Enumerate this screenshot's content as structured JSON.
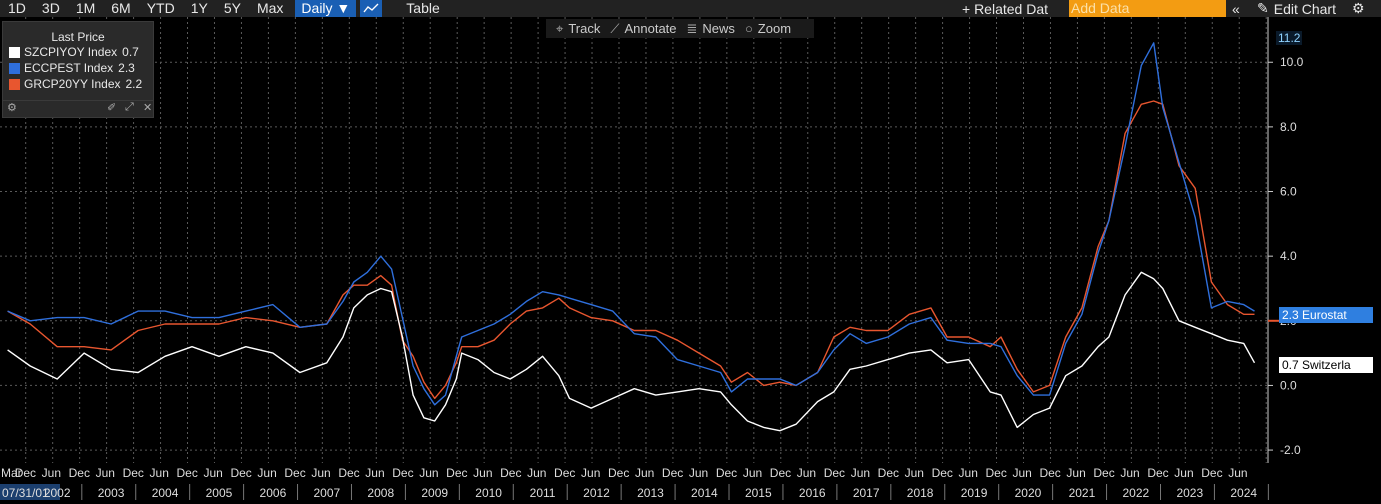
{
  "toolbar": {
    "ranges": [
      "1D",
      "3D",
      "1M",
      "6M",
      "YTD",
      "1Y",
      "5Y",
      "Max"
    ],
    "frequency": "Daily ▼",
    "table_label": "Table",
    "related_label": "+ Related Dat",
    "add_data_placeholder": "Add Data",
    "collapse_glyph": "«",
    "edit_chart_label": "Edit Chart"
  },
  "legend": {
    "title": "Last Price",
    "items": [
      {
        "label": "SZCPIYOY Index",
        "value": "0.7",
        "color": "#ffffff"
      },
      {
        "label": "ECCPEST Index",
        "value": "2.3",
        "color": "#2f6fdc"
      },
      {
        "label": "GRCP20YY Index",
        "value": "2.2",
        "color": "#e8562f"
      }
    ]
  },
  "chart_tools": [
    "Track",
    "Annotate",
    "News",
    "Zoom"
  ],
  "tags": {
    "top_value": "11.2",
    "eurostat": "2.3 Eurostat",
    "switzerland": "0.7 Switzerla"
  },
  "x_axis": {
    "start_label": "07/31/01",
    "months": [
      "Mar",
      "Dec",
      "Jun",
      "Dec",
      "Jun",
      "Dec",
      "Jun",
      "Dec",
      "Jun",
      "Dec",
      "Jun",
      "Dec",
      "Jun",
      "Dec",
      "Jun",
      "Dec",
      "Jun",
      "Dec",
      "Jun",
      "Dec",
      "Jun",
      "Dec",
      "Jun",
      "Dec",
      "Jun",
      "Dec",
      "Jun",
      "Dec",
      "Jun",
      "Dec",
      "Jun",
      "Dec",
      "Jun",
      "Dec",
      "Jun",
      "Dec",
      "Jun",
      "Dec",
      "Jun",
      "Dec",
      "Jun",
      "Dec",
      "Jun",
      "Dec",
      "Jun",
      "Dec",
      "Jun"
    ],
    "years": [
      "2002",
      "2003",
      "2004",
      "2005",
      "2006",
      "2007",
      "2008",
      "2009",
      "2010",
      "2011",
      "2012",
      "2013",
      "2014",
      "2015",
      "2016",
      "2017",
      "2018",
      "2019",
      "2020",
      "2021",
      "2022",
      "2023",
      "2024"
    ]
  },
  "chart_data": {
    "type": "line",
    "x": [
      2001.58,
      2002.0,
      2002.5,
      2003.0,
      2003.5,
      2004.0,
      2004.5,
      2005.0,
      2005.5,
      2006.0,
      2006.5,
      2007.0,
      2007.5,
      2007.8,
      2008.0,
      2008.25,
      2008.5,
      2008.7,
      2008.9,
      2009.1,
      2009.3,
      2009.5,
      2009.7,
      2009.9,
      2010.0,
      2010.3,
      2010.6,
      2010.9,
      2011.2,
      2011.5,
      2011.8,
      2012.0,
      2012.4,
      2012.8,
      2013.2,
      2013.6,
      2014.0,
      2014.4,
      2014.8,
      2015.0,
      2015.3,
      2015.6,
      2015.9,
      2016.2,
      2016.6,
      2016.9,
      2017.2,
      2017.5,
      2017.9,
      2018.3,
      2018.7,
      2019.0,
      2019.4,
      2019.8,
      2020.0,
      2020.3,
      2020.6,
      2020.9,
      2021.2,
      2021.5,
      2021.8,
      2022.0,
      2022.3,
      2022.6,
      2022.83,
      2023.0,
      2023.3,
      2023.6,
      2023.9,
      2024.2,
      2024.5,
      2024.7
    ],
    "series": [
      {
        "name": "SZCPIYOY Index",
        "color": "#ffffff",
        "values": [
          1.1,
          0.6,
          0.2,
          1.0,
          0.5,
          0.4,
          0.9,
          1.2,
          0.9,
          1.2,
          1.0,
          0.4,
          0.7,
          1.5,
          2.4,
          2.8,
          3.0,
          2.9,
          1.5,
          -0.3,
          -1.0,
          -1.1,
          -0.6,
          0.2,
          1.0,
          0.8,
          0.4,
          0.2,
          0.5,
          0.9,
          0.3,
          -0.4,
          -0.7,
          -0.4,
          -0.1,
          -0.3,
          -0.2,
          -0.1,
          -0.2,
          -0.6,
          -1.1,
          -1.3,
          -1.4,
          -1.2,
          -0.5,
          -0.2,
          0.5,
          0.6,
          0.8,
          1.0,
          1.1,
          0.7,
          0.8,
          -0.2,
          -0.3,
          -1.3,
          -0.9,
          -0.7,
          0.3,
          0.6,
          1.2,
          1.5,
          2.8,
          3.5,
          3.3,
          3.0,
          2.0,
          1.8,
          1.6,
          1.4,
          1.3,
          0.7
        ]
      },
      {
        "name": "ECCPEST Index",
        "color": "#2f6fdc",
        "values": [
          2.3,
          2.0,
          2.1,
          2.1,
          1.9,
          2.3,
          2.3,
          2.1,
          2.1,
          2.3,
          2.5,
          1.8,
          1.9,
          2.6,
          3.2,
          3.5,
          4.0,
          3.6,
          2.1,
          0.6,
          -0.1,
          -0.6,
          -0.3,
          0.9,
          1.5,
          1.7,
          1.9,
          2.2,
          2.6,
          2.9,
          2.8,
          2.7,
          2.5,
          2.3,
          1.6,
          1.5,
          0.8,
          0.6,
          0.4,
          -0.2,
          0.2,
          0.2,
          0.2,
          0.0,
          0.4,
          1.1,
          1.6,
          1.3,
          1.5,
          1.9,
          2.1,
          1.4,
          1.3,
          1.3,
          1.2,
          0.3,
          -0.3,
          -0.3,
          1.3,
          2.2,
          4.1,
          5.1,
          7.4,
          9.9,
          10.6,
          8.6,
          6.9,
          5.2,
          2.4,
          2.6,
          2.5,
          2.3
        ]
      },
      {
        "name": "GRCP20YY Index",
        "color": "#e8562f",
        "values": [
          2.3,
          1.9,
          1.2,
          1.2,
          1.1,
          1.7,
          1.9,
          1.9,
          1.9,
          2.1,
          2.0,
          1.8,
          1.9,
          2.8,
          3.1,
          3.1,
          3.4,
          3.1,
          1.4,
          0.9,
          0.1,
          -0.4,
          0.0,
          0.7,
          1.2,
          1.2,
          1.4,
          1.9,
          2.3,
          2.4,
          2.7,
          2.4,
          2.1,
          2.0,
          1.7,
          1.7,
          1.4,
          1.0,
          0.6,
          0.1,
          0.4,
          0.0,
          0.1,
          0.0,
          0.4,
          1.5,
          1.8,
          1.7,
          1.7,
          2.2,
          2.4,
          1.5,
          1.5,
          1.2,
          1.5,
          0.5,
          -0.2,
          0.0,
          1.5,
          2.4,
          4.3,
          5.1,
          7.8,
          8.7,
          8.8,
          8.7,
          6.8,
          6.1,
          3.2,
          2.5,
          2.2,
          2.2
        ]
      }
    ],
    "ylim": [
      -2.4,
      11.4
    ],
    "yticks": [
      -2.0,
      0.0,
      2.0,
      4.0,
      6.0,
      8.0,
      10.0
    ],
    "ytick_labels": [
      "-2.0",
      "0.0",
      "2.0",
      "4.0",
      "6.0",
      "8.0",
      "10.0"
    ],
    "xlim": [
      2001.44,
      2024.95
    ],
    "grid": true,
    "legend_position": "top-left"
  }
}
